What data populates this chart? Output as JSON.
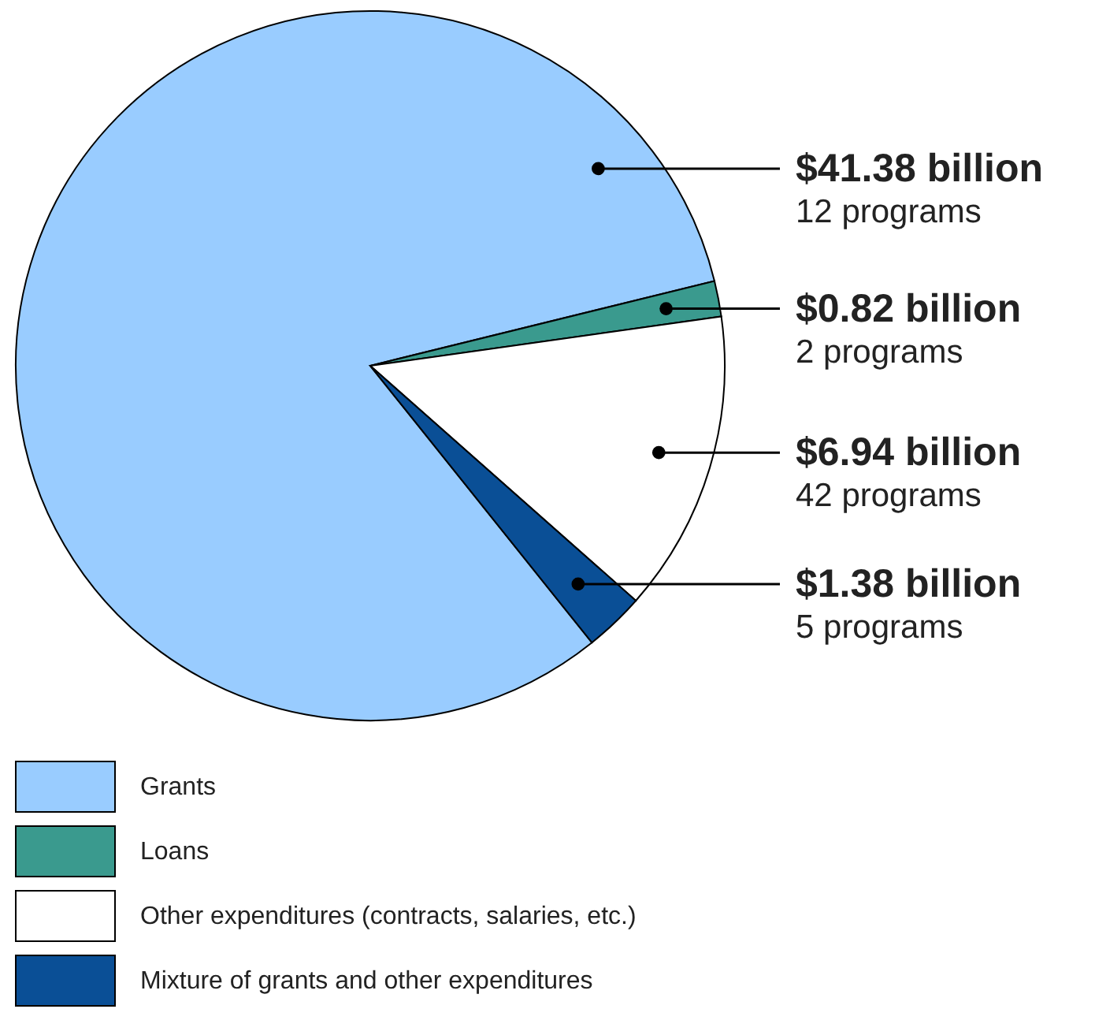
{
  "chart_data": {
    "type": "pie",
    "categories": [
      "Grants",
      "Loans",
      "Other expenditures (contracts, salaries, etc.)",
      "Mixture of grants and other expenditures"
    ],
    "values": [
      41.38,
      0.82,
      6.94,
      1.38
    ],
    "colors": [
      "#99ccff",
      "#3a9a8e",
      "#ffffff",
      "#0a4f96"
    ],
    "value_labels": [
      "$41.38 billion",
      "$0.82 billion",
      "$6.94 billion",
      "$1.38 billion"
    ],
    "annotations": [
      {
        "text": "12 programs",
        "x": "Grants"
      },
      {
        "text": "2 programs",
        "x": "Loans"
      },
      {
        "text": "42 programs",
        "x": "Other expenditures (contracts, salaries, etc.)"
      },
      {
        "text": "5 programs",
        "x": "Mixture of grants and other expenditures"
      }
    ],
    "legend": "bottom"
  }
}
